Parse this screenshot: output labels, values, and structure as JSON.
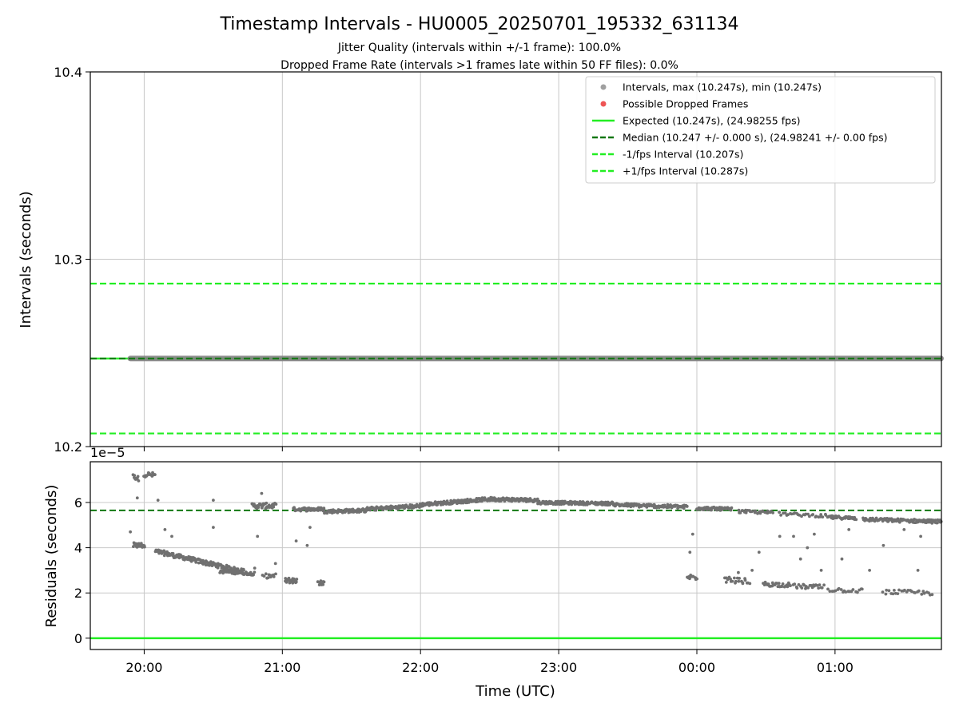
{
  "figure": {
    "title": "Timestamp Intervals - HU0005_20250701_195332_631134",
    "subtitle_1": "Jitter Quality (intervals within +/-1 frame): 100.0%",
    "subtitle_2": "Dropped Frame Rate (intervals >1 frames late within 50 FF files): 0.0%",
    "xlabel": "Time (UTC)"
  },
  "colors": {
    "intervals": "#a0a0a0",
    "intervals_line": "#808080",
    "dropped": "#ee5555",
    "expected": "#22ee22",
    "median": "#117711",
    "fps_bounds": "#22ee22",
    "residuals": "#707070",
    "zero_line": "#22ee22",
    "grid": "#c8c8c8"
  },
  "chart_data": [
    {
      "type": "scatter",
      "panel": "top",
      "ylabel": "Intervals (seconds)",
      "ylim": [
        10.2,
        10.4
      ],
      "yticks": [
        "10.2",
        "10.3",
        "10.4"
      ],
      "xlim_hours": [
        19.61,
        25.77
      ],
      "xticks": [
        "20:00",
        "21:00",
        "22:00",
        "23:00",
        "00:00",
        "01:00"
      ],
      "grid": true,
      "legend_position": "top-right",
      "legend": [
        "Intervals, max (10.247s), min (10.247s)",
        "Possible Dropped Frames",
        "Expected (10.247s), (24.98255 fps)",
        "Median (10.247 +/- 0.000 s), (24.98241 +/- 0.00 fps)",
        "-1/fps Interval (10.207s)",
        "+1/fps Interval (10.287s)"
      ],
      "series": [
        {
          "name": "Intervals, max (10.247s), min (10.247s)",
          "x_range": [
            "19:54",
            "01:46"
          ],
          "y": 10.247
        },
        {
          "name": "Possible Dropped Frames",
          "values": []
        },
        {
          "name": "Expected (10.247s), (24.98255 fps)",
          "y": 10.247
        },
        {
          "name": "Median (10.247 +/- 0.000 s), (24.98241 +/- 0.00 fps)",
          "y": 10.247
        },
        {
          "name": "-1/fps Interval (10.207s)",
          "y": 10.207
        },
        {
          "name": "+1/fps Interval (10.287s)",
          "y": 10.287
        }
      ]
    },
    {
      "type": "scatter",
      "panel": "bottom",
      "ylabel": "Residuals (seconds)",
      "yscale_label": "1e−5",
      "ylim": [
        -0.5,
        7.8
      ],
      "yticks": [
        "0",
        "2",
        "4",
        "6"
      ],
      "xlim_hours": [
        19.61,
        25.77
      ],
      "xticks": [
        "20:00",
        "21:00",
        "22:00",
        "23:00",
        "00:00",
        "01:00"
      ],
      "grid": true,
      "median_residual": 5.65,
      "zero_line": 0,
      "residual_segments": [
        {
          "x": [
            19.92,
            20.0
          ],
          "y": [
            4.1,
            4.1
          ],
          "spread": 0.12,
          "n": 20
        },
        {
          "x": [
            19.92,
            19.96
          ],
          "y": [
            7.15,
            7.05
          ],
          "spread": 0.1,
          "n": 10
        },
        {
          "x": [
            20.0,
            20.08
          ],
          "y": [
            7.25,
            7.2
          ],
          "spread": 0.12,
          "n": 14
        },
        {
          "x": [
            20.08,
            20.72
          ],
          "y": [
            3.85,
            2.95
          ],
          "spread": 0.1,
          "n": 160
        },
        {
          "x": [
            20.55,
            20.8
          ],
          "y": [
            2.95,
            2.85
          ],
          "spread": 0.07,
          "n": 50
        },
        {
          "x": [
            20.78,
            20.95
          ],
          "y": [
            5.85,
            5.85
          ],
          "spread": 0.12,
          "n": 40
        },
        {
          "x": [
            20.86,
            20.95
          ],
          "y": [
            2.75,
            2.75
          ],
          "spread": 0.1,
          "n": 12
        },
        {
          "x": [
            21.02,
            21.1
          ],
          "y": [
            2.55,
            2.55
          ],
          "spread": 0.12,
          "n": 25
        },
        {
          "x": [
            21.08,
            21.3
          ],
          "y": [
            5.7,
            5.7
          ],
          "spread": 0.08,
          "n": 45
        },
        {
          "x": [
            21.26,
            21.3
          ],
          "y": [
            2.45,
            2.45
          ],
          "spread": 0.12,
          "n": 10
        },
        {
          "x": [
            21.3,
            21.6
          ],
          "y": [
            5.6,
            5.65
          ],
          "spread": 0.08,
          "n": 70
        },
        {
          "x": [
            21.6,
            22.0
          ],
          "y": [
            5.7,
            5.85
          ],
          "spread": 0.08,
          "n": 90
        },
        {
          "x": [
            22.0,
            22.5
          ],
          "y": [
            5.9,
            6.15
          ],
          "spread": 0.08,
          "n": 120
        },
        {
          "x": [
            22.5,
            22.85
          ],
          "y": [
            6.15,
            6.1
          ],
          "spread": 0.08,
          "n": 90
        },
        {
          "x": [
            22.85,
            23.4
          ],
          "y": [
            6.0,
            5.95
          ],
          "spread": 0.07,
          "n": 120
        },
        {
          "x": [
            23.4,
            23.93
          ],
          "y": [
            5.9,
            5.8
          ],
          "spread": 0.08,
          "n": 110
        },
        {
          "x": [
            23.93,
            24.0
          ],
          "y": [
            2.7,
            2.7
          ],
          "spread": 0.12,
          "n": 14
        },
        {
          "x": [
            24.0,
            24.25
          ],
          "y": [
            5.75,
            5.7
          ],
          "spread": 0.07,
          "n": 60
        },
        {
          "x": [
            24.2,
            24.38
          ],
          "y": [
            2.6,
            2.5
          ],
          "spread": 0.12,
          "n": 22
        },
        {
          "x": [
            24.3,
            24.55
          ],
          "y": [
            5.6,
            5.55
          ],
          "spread": 0.07,
          "n": 30
        },
        {
          "x": [
            24.48,
            24.68
          ],
          "y": [
            2.4,
            2.35
          ],
          "spread": 0.1,
          "n": 30
        },
        {
          "x": [
            24.6,
            24.95
          ],
          "y": [
            5.5,
            5.4
          ],
          "spread": 0.07,
          "n": 30
        },
        {
          "x": [
            24.7,
            24.92
          ],
          "y": [
            2.3,
            2.25
          ],
          "spread": 0.1,
          "n": 24
        },
        {
          "x": [
            24.95,
            25.15
          ],
          "y": [
            5.35,
            5.3
          ],
          "spread": 0.07,
          "n": 40
        },
        {
          "x": [
            24.95,
            25.2
          ],
          "y": [
            2.15,
            2.1
          ],
          "spread": 0.1,
          "n": 20
        },
        {
          "x": [
            25.2,
            25.77
          ],
          "y": [
            5.25,
            5.15
          ],
          "spread": 0.08,
          "n": 110
        },
        {
          "x": [
            25.35,
            25.7
          ],
          "y": [
            2.05,
            2.0
          ],
          "spread": 0.1,
          "n": 28
        }
      ],
      "residual_outliers": [
        [
          19.9,
          4.7
        ],
        [
          19.95,
          6.2
        ],
        [
          20.1,
          6.1
        ],
        [
          20.15,
          4.8
        ],
        [
          20.2,
          4.5
        ],
        [
          20.5,
          4.9
        ],
        [
          20.5,
          6.1
        ],
        [
          20.8,
          3.1
        ],
        [
          20.82,
          4.5
        ],
        [
          20.85,
          6.4
        ],
        [
          20.95,
          3.3
        ],
        [
          21.1,
          4.3
        ],
        [
          21.18,
          4.1
        ],
        [
          21.2,
          4.9
        ],
        [
          23.95,
          3.8
        ],
        [
          23.97,
          4.6
        ],
        [
          24.3,
          2.9
        ],
        [
          24.4,
          3.0
        ],
        [
          24.45,
          3.8
        ],
        [
          24.6,
          4.5
        ],
        [
          24.7,
          4.5
        ],
        [
          24.75,
          3.5
        ],
        [
          24.8,
          4.0
        ],
        [
          24.85,
          4.6
        ],
        [
          24.9,
          3.0
        ],
        [
          25.05,
          3.5
        ],
        [
          25.1,
          4.8
        ],
        [
          25.25,
          3.0
        ],
        [
          25.35,
          4.1
        ],
        [
          25.5,
          4.8
        ],
        [
          25.6,
          3.0
        ],
        [
          25.62,
          4.5
        ]
      ]
    }
  ]
}
